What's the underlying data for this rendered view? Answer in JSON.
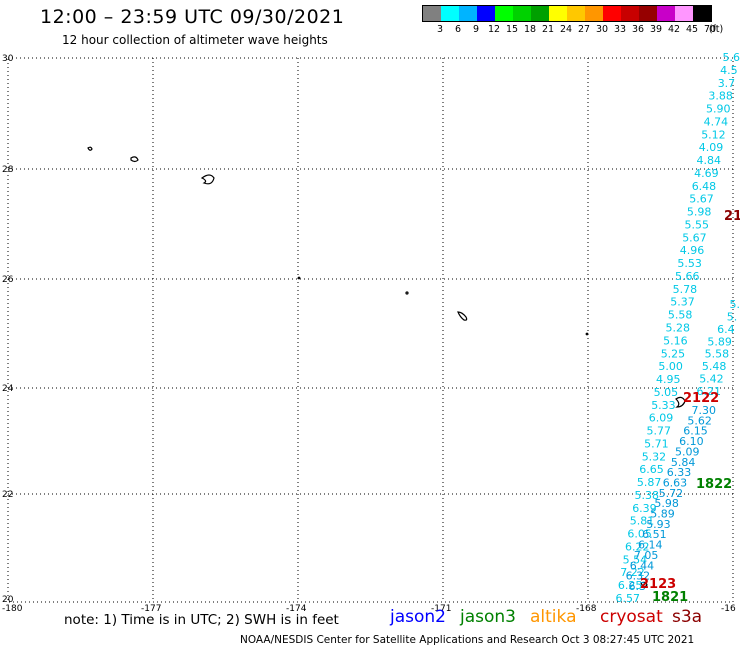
{
  "header": {
    "title": "12:00 – 23:59 UTC 09/30/2021",
    "subtitle": "12 hour collection of altimeter wave heights"
  },
  "legend": {
    "colors": [
      "#808080",
      "#00ffff",
      "#00b4ff",
      "#0000ff",
      "#00ff00",
      "#00d200",
      "#00a000",
      "#ffff00",
      "#ffc800",
      "#ff9600",
      "#ff0000",
      "#c80000",
      "#960000",
      "#c800c8",
      "#ff96ff",
      "#000000"
    ],
    "labels": [
      "3",
      "6",
      "9",
      "12",
      "15",
      "18",
      "21",
      "24",
      "27",
      "30",
      "33",
      "36",
      "39",
      "42",
      "45",
      "70",
      "(ft)"
    ]
  },
  "axes": {
    "x_ticks": [
      "-180",
      "-177",
      "-174",
      "-171",
      "-168",
      "-16"
    ],
    "y_ticks": [
      "30",
      "28",
      "26",
      "24",
      "22",
      "20"
    ]
  },
  "track_values": {
    "cyan_main": [
      "5.6",
      "4.5",
      "3.7",
      "3.88",
      "5.90",
      "4.74",
      "5.12",
      "4.09",
      "4.84",
      "4.69",
      "6.48",
      "5.67",
      "5.98",
      "5.55",
      "5.67",
      "4.96",
      "5.53",
      "5.66",
      "5.78",
      "5.37",
      "5.58",
      "5.28",
      "5.16",
      "5.25",
      "5.00",
      "4.95",
      "5.05",
      "5.33",
      "6.09",
      "5.77",
      "5.71",
      "5.32",
      "6.65",
      "5.87",
      "5.38",
      "6.39",
      "5.81",
      "6.05",
      "6.22",
      "5.54",
      "7.22",
      "6.25",
      "6.57"
    ],
    "cyan_right": [
      "5.",
      "5.",
      "6.4",
      "5.89",
      "5.58",
      "5.48",
      "5.42",
      "6.21"
    ],
    "blue_track": [
      "7.30",
      "5.62",
      "6.15",
      "6.10",
      "5.09",
      "5.84",
      "6.33",
      "6.63",
      "5.72",
      "5.98",
      "5.89",
      "5.93",
      "6.51",
      "6.14",
      "7.05",
      "6.44",
      "6.32",
      "6.3"
    ]
  },
  "labels": {
    "time_top_right": "21",
    "time_cryosat_mid": "2122",
    "time_jason3_mid": "1822",
    "time_cryosat_bottom": "2123",
    "time_jason3_bottom": "1821"
  },
  "footer": {
    "note": "note:  1) Time is in UTC;  2) SWH is in feet",
    "satellites": [
      {
        "name": "jason2",
        "color": "#0000ff"
      },
      {
        "name": "jason3",
        "color": "#008000"
      },
      {
        "name": "altika",
        "color": "#ff9600"
      },
      {
        "name": "cryosat",
        "color": "#cc0000"
      },
      {
        "name": "s3a",
        "color": "#8b0000"
      }
    ],
    "credit": "NOAA/NESDIS Center for Satellite Applications and Research    Oct  3 08:27:45 UTC 2021"
  }
}
